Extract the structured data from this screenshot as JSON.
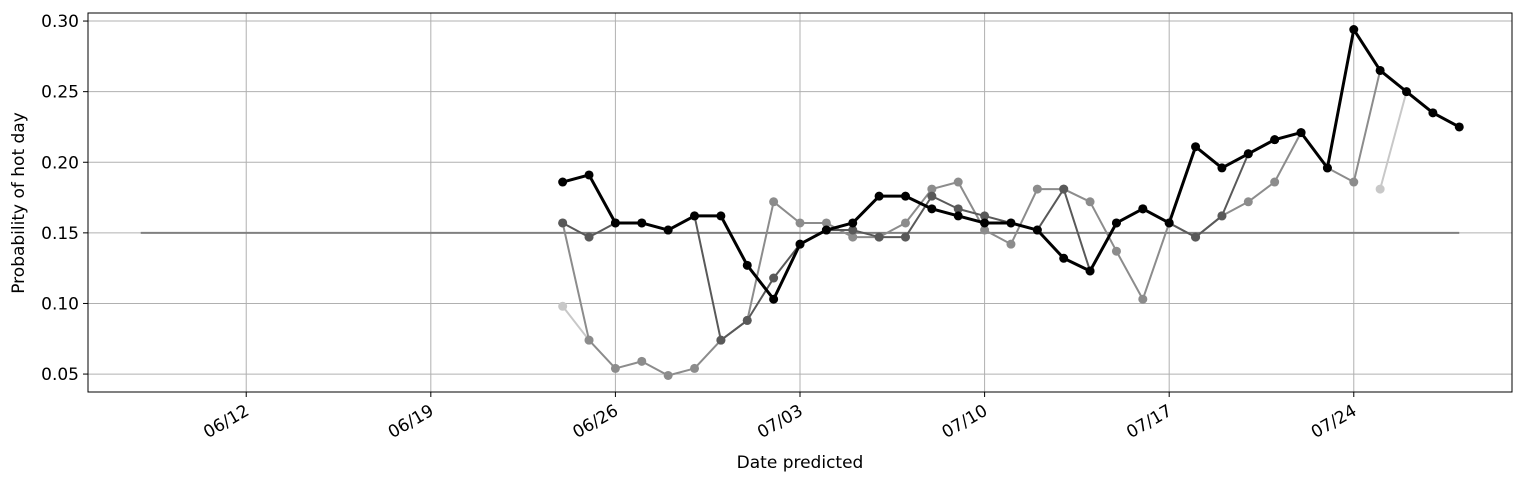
{
  "chart_data": {
    "type": "line",
    "xlabel": "Date predicted",
    "ylabel": "Probability of hot day",
    "x": [
      "06/24",
      "06/25",
      "06/26",
      "06/27",
      "06/28",
      "06/29",
      "06/30",
      "07/01",
      "07/02",
      "07/03",
      "07/04",
      "07/05",
      "07/06",
      "07/07",
      "07/08",
      "07/09",
      "07/10",
      "07/11",
      "07/12",
      "07/13",
      "07/14",
      "07/15",
      "07/16",
      "07/17",
      "07/18",
      "07/19",
      "07/20",
      "07/21",
      "07/22",
      "07/23",
      "07/24",
      "07/25",
      "07/26",
      "07/27",
      "07/28"
    ],
    "series": [
      {
        "color": "#c8c8c8",
        "width": 2,
        "values": [
          0.098,
          0.074,
          null,
          null,
          null,
          null,
          null,
          null,
          null,
          null,
          null,
          null,
          null,
          null,
          null,
          null,
          null,
          null,
          null,
          null,
          null,
          null,
          null,
          null,
          null,
          null,
          null,
          null,
          null,
          null,
          null,
          0.181,
          0.25,
          null,
          null
        ]
      },
      {
        "color": "#8c8c8c",
        "width": 2,
        "values": [
          0.157,
          0.074,
          0.054,
          0.059,
          0.049,
          0.054,
          0.074,
          0.088,
          0.172,
          0.157,
          0.157,
          0.147,
          0.147,
          0.157,
          0.181,
          0.186,
          0.152,
          0.142,
          0.181,
          0.181,
          0.172,
          0.137,
          0.103,
          0.157,
          0.147,
          0.162,
          0.172,
          0.186,
          0.221,
          0.196,
          0.186,
          0.265,
          null,
          null,
          null
        ]
      },
      {
        "color": "#595959",
        "width": 2,
        "values": [
          0.157,
          0.147,
          0.157,
          0.157,
          0.152,
          0.162,
          0.074,
          0.088,
          0.118,
          0.142,
          0.152,
          0.152,
          0.147,
          0.147,
          0.176,
          0.167,
          0.162,
          0.157,
          0.152,
          0.181,
          0.123,
          0.157,
          0.167,
          0.157,
          0.147,
          0.162,
          0.206,
          0.216,
          0.221,
          0.196,
          null,
          null,
          null,
          null,
          null
        ]
      },
      {
        "color": "#000000",
        "width": 3,
        "values": [
          0.186,
          0.191,
          0.157,
          0.157,
          0.152,
          0.162,
          0.162,
          0.127,
          0.103,
          0.142,
          0.152,
          0.157,
          0.176,
          0.176,
          0.167,
          0.162,
          0.157,
          0.157,
          0.152,
          0.132,
          0.123,
          0.157,
          0.167,
          0.157,
          0.211,
          0.196,
          0.206,
          0.216,
          0.221,
          0.196,
          0.294,
          0.265,
          0.25,
          0.235,
          0.225
        ]
      }
    ],
    "baseline": {
      "x": [
        "06/08",
        "07/28"
      ],
      "value": 0.15,
      "color": "#808080"
    },
    "xlim": [
      "06/06",
      "07/30"
    ],
    "xticks": [
      "06/12",
      "06/19",
      "06/26",
      "07/03",
      "07/10",
      "07/17",
      "07/24"
    ],
    "ylim": [
      0.0373,
      0.3057
    ],
    "yticks": [
      0.05,
      {
        "value": 0.1,
        "label": "0.10"
      },
      0.15,
      {
        "value": 0.2,
        "label": "0.20"
      },
      0.25,
      {
        "value": 0.3,
        "label": "0.30"
      }
    ],
    "grid": true
  }
}
